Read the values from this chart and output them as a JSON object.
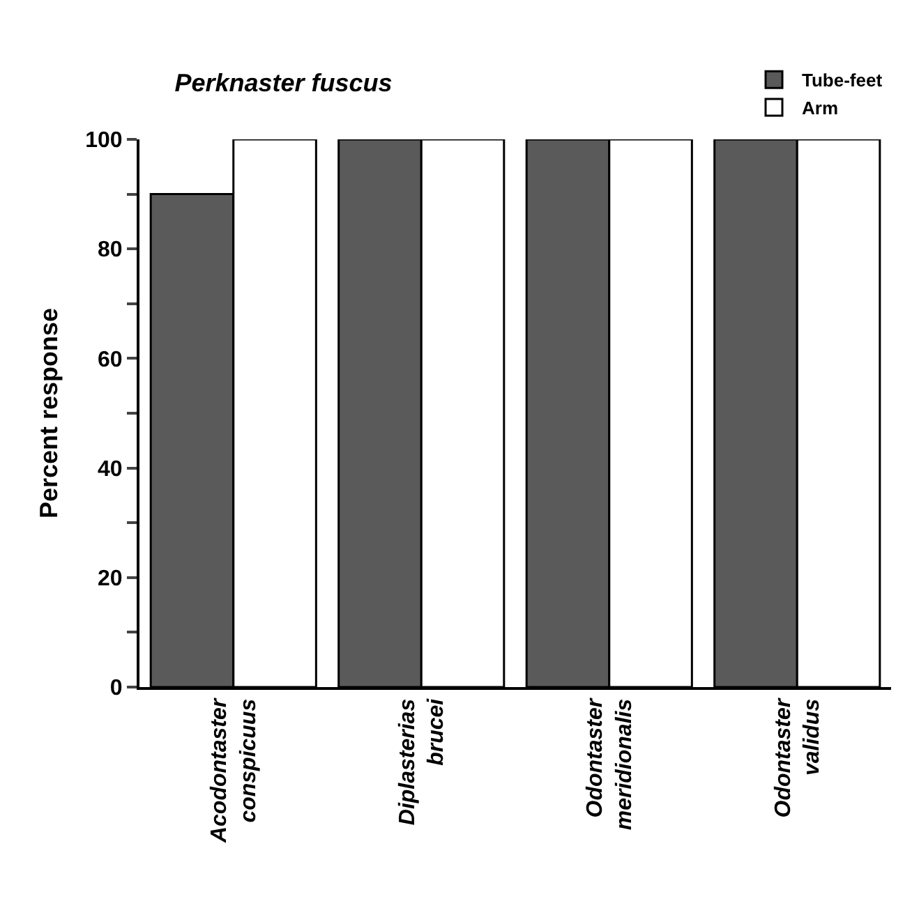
{
  "chart_data": {
    "type": "bar",
    "title": "Perknaster fuscus",
    "ylabel": "Percent response",
    "categories": [
      "Acodontaster\nconspicuus",
      "Diplasterias\nbrucei",
      "Odontaster\nmeridionalis",
      "Odontaster\nvalidus"
    ],
    "series": [
      {
        "name": "Tube-feet",
        "color": "#5a5a5a",
        "values": [
          90,
          100,
          100,
          100
        ]
      },
      {
        "name": "Arm",
        "color": "#ffffff",
        "values": [
          100,
          100,
          100,
          100
        ]
      }
    ],
    "ylim": [
      0,
      100
    ],
    "yticks": [
      0,
      {
        "value": 10,
        "label": null
      },
      20,
      {
        "value": 30,
        "label": null
      },
      40,
      {
        "value": 50,
        "label": null
      },
      60,
      {
        "value": 70,
        "label": null
      },
      80,
      {
        "value": 90,
        "label": null
      },
      100
    ],
    "legend": "top right"
  }
}
